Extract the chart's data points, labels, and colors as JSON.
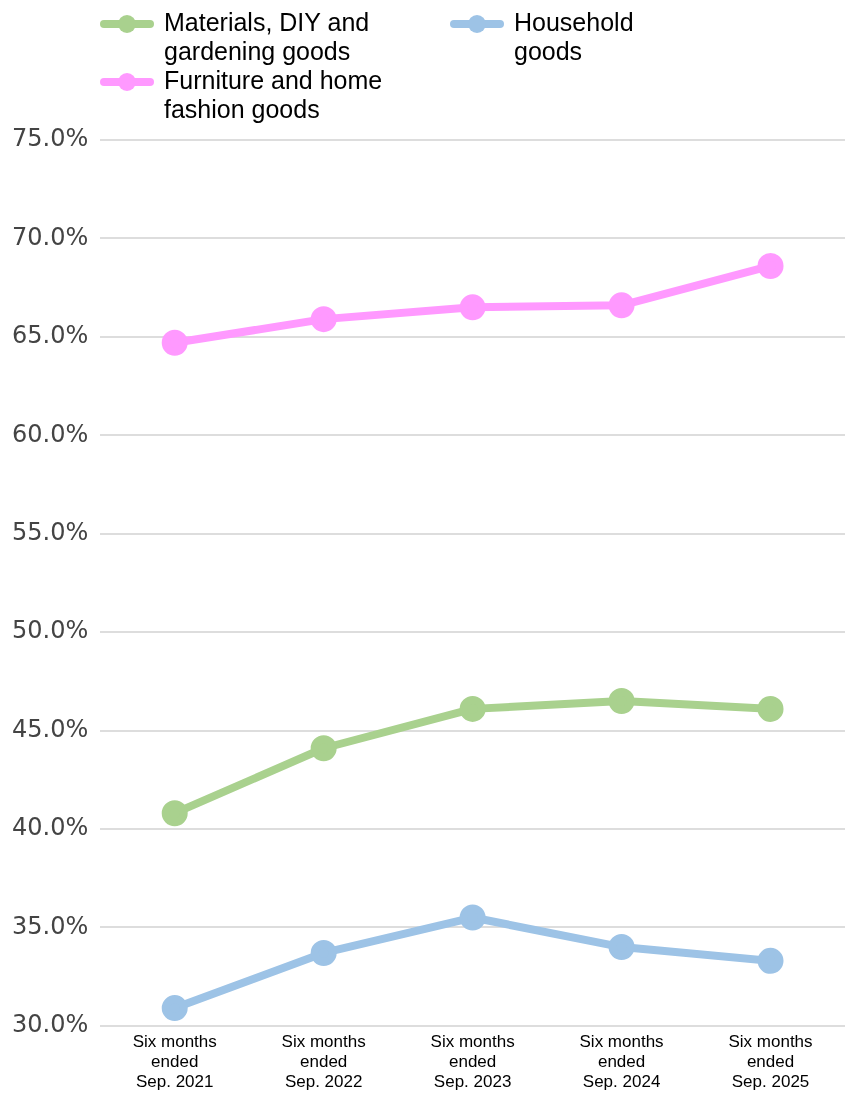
{
  "chart_data": {
    "type": "line",
    "categories": [
      "Six months ended Sep. 2021",
      "Six months ended Sep. 2022",
      "Six months ended Sep. 2023",
      "Six months ended Sep. 2024",
      "Six months ended Sep. 2025"
    ],
    "series": [
      {
        "name": "Materials, DIY and gardening goods",
        "color": "#a9d18e",
        "values": [
          40.8,
          44.1,
          46.1,
          46.5,
          46.1
        ]
      },
      {
        "name": "Furniture and home fashion goods",
        "color": "#ff99ff",
        "values": [
          64.7,
          65.9,
          66.5,
          66.6,
          68.6
        ]
      },
      {
        "name": "Household goods",
        "color": "#9dc3e6",
        "values": [
          30.9,
          33.7,
          35.5,
          34.0,
          33.3
        ]
      }
    ],
    "ylim": [
      30,
      75
    ],
    "yticks": [
      {
        "value": 30,
        "label": "30.0%"
      },
      {
        "value": 35,
        "label": "35.0%"
      },
      {
        "value": 40,
        "label": "40.0%"
      },
      {
        "value": 45,
        "label": "45.0%"
      },
      {
        "value": 50,
        "label": "50.0%"
      },
      {
        "value": 55,
        "label": "55.0%"
      },
      {
        "value": 60,
        "label": "60.0%"
      },
      {
        "value": 65,
        "label": "65.0%"
      },
      {
        "value": 70,
        "label": "70.0%"
      },
      {
        "value": 75,
        "label": "75.0%"
      }
    ],
    "grid": "y",
    "legend": "top left",
    "marker": "circle",
    "line_style": "solid"
  }
}
